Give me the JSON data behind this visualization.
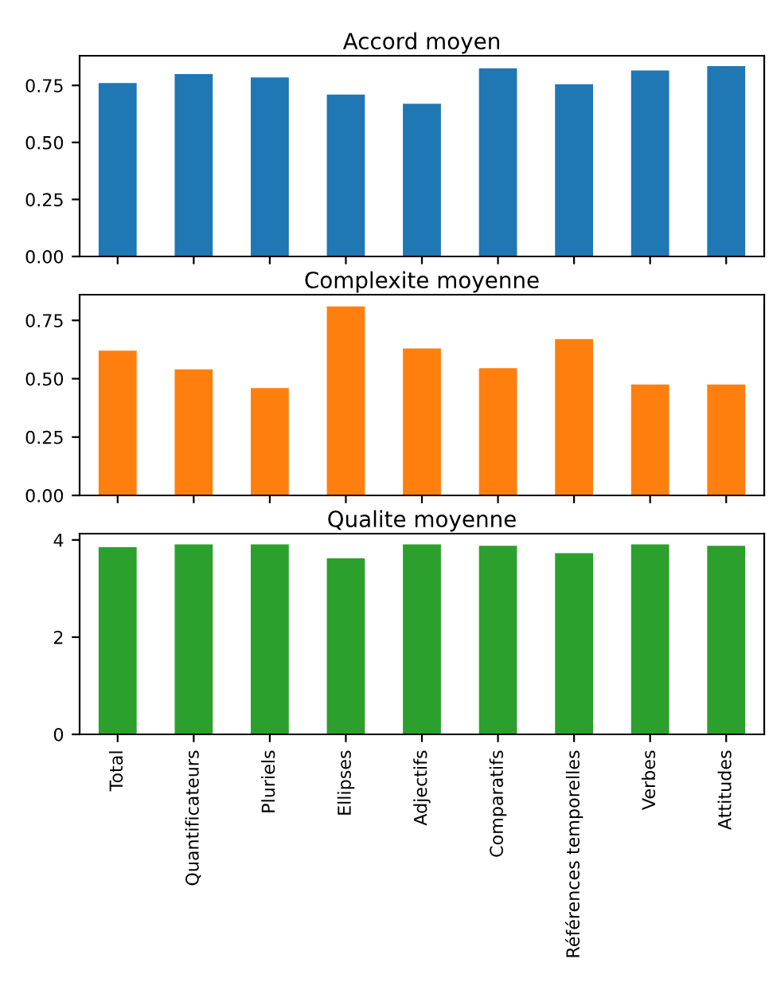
{
  "chart_data": [
    {
      "type": "bar",
      "title": "Accord moyen",
      "categories": [
        null,
        null,
        null,
        null,
        null,
        null,
        null,
        null,
        null
      ],
      "values": [
        0.76,
        0.8,
        0.785,
        0.71,
        0.67,
        0.825,
        0.755,
        0.815,
        0.835
      ],
      "color": "#1f77b4",
      "ylim": [
        0,
        0.88
      ],
      "yticks": [
        {
          "value": 0,
          "label": "0.00"
        },
        {
          "value": 0.25,
          "label": "0.25"
        },
        {
          "value": 0.5,
          "label": "0.50"
        },
        {
          "value": 0.75,
          "label": "0.75"
        }
      ]
    },
    {
      "type": "bar",
      "title": "Complexite moyenne",
      "categories": [
        null,
        null,
        null,
        null,
        null,
        null,
        null,
        null,
        null
      ],
      "values": [
        0.62,
        0.54,
        0.46,
        0.81,
        0.63,
        0.545,
        0.67,
        0.475,
        0.475
      ],
      "color": "#ff7f0e",
      "ylim": [
        0,
        0.86
      ],
      "yticks": [
        {
          "value": 0,
          "label": "0.00"
        },
        {
          "value": 0.25,
          "label": "0.25"
        },
        {
          "value": 0.5,
          "label": "0.50"
        },
        {
          "value": 0.75,
          "label": "0.75"
        }
      ]
    },
    {
      "type": "bar",
      "title": "Qualite moyenne",
      "categories": [
        "Total",
        "Quantificateurs",
        "Pluriels",
        "Ellipses",
        "Adjectifs",
        "Comparatifs",
        "Références temporelles",
        "Verbes",
        "Attitudes"
      ],
      "values": [
        3.85,
        3.91,
        3.91,
        3.62,
        3.91,
        3.88,
        3.73,
        3.91,
        3.88
      ],
      "color": "#2ca02c",
      "ylim": [
        0,
        4.13
      ],
      "yticks": [
        0,
        2,
        4
      ]
    }
  ]
}
